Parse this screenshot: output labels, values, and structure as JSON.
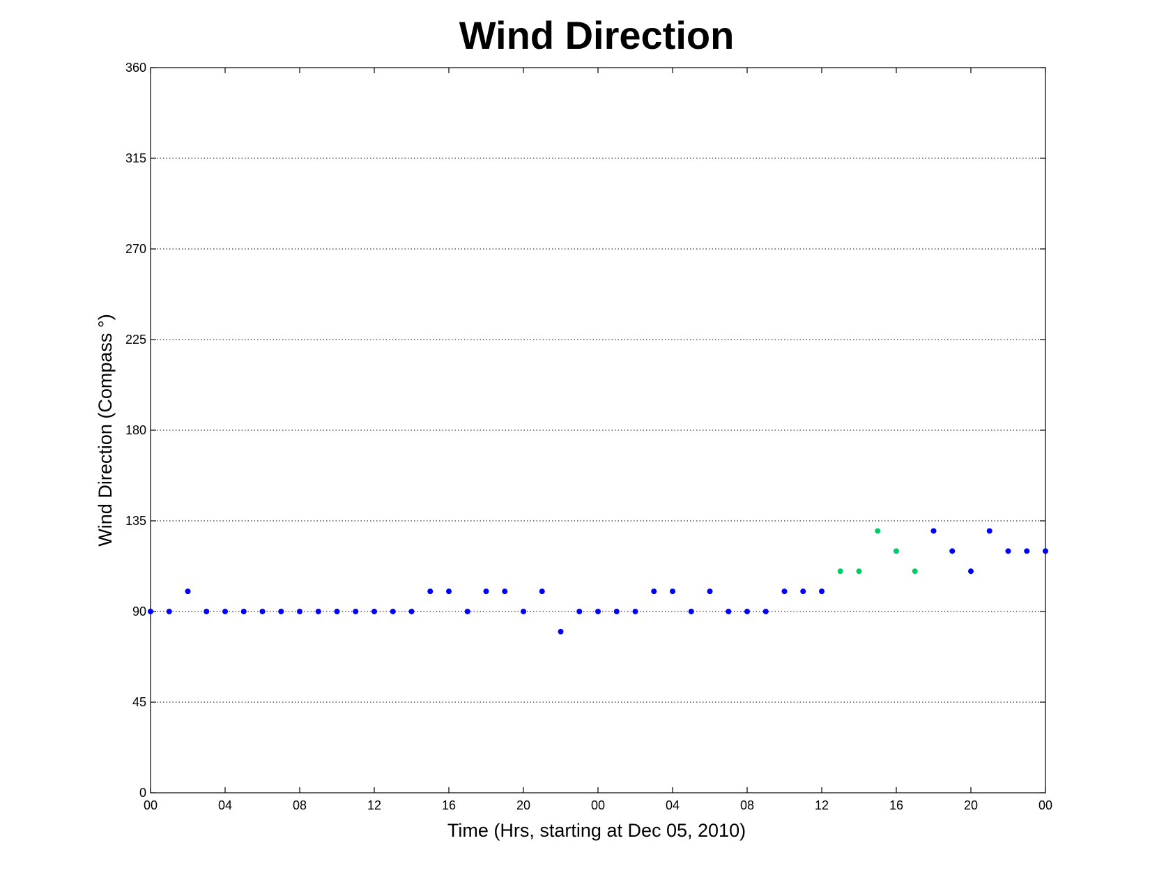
{
  "chart_data": {
    "type": "scatter",
    "title": "Wind Direction",
    "xlabel": "Time (Hrs, starting at Dec 05, 2010)",
    "ylabel": "Wind Direction (Compass  °)",
    "x_unit": "hours",
    "xlim": [
      0,
      48
    ],
    "ylim": [
      0,
      360
    ],
    "x_ticks": [
      0,
      4,
      8,
      12,
      16,
      20,
      24,
      28,
      32,
      36,
      40,
      44,
      48
    ],
    "x_tick_labels": [
      "00",
      "04",
      "08",
      "12",
      "16",
      "20",
      "00",
      "04",
      "08",
      "12",
      "16",
      "20",
      "00"
    ],
    "y_ticks": [
      0,
      45,
      90,
      135,
      180,
      225,
      270,
      315,
      360
    ],
    "y_tick_labels": [
      "0",
      "45",
      "90",
      "135",
      "180",
      "225",
      "270",
      "315",
      "360"
    ],
    "grid": "horizontal",
    "series": [
      {
        "color": "#0000ff",
        "points": [
          [
            0,
            90
          ],
          [
            1,
            90
          ],
          [
            2,
            100
          ],
          [
            3,
            90
          ],
          [
            4,
            90
          ],
          [
            5,
            90
          ],
          [
            6,
            90
          ],
          [
            7,
            90
          ],
          [
            8,
            90
          ],
          [
            9,
            90
          ],
          [
            10,
            90
          ],
          [
            11,
            90
          ],
          [
            12,
            90
          ],
          [
            13,
            90
          ],
          [
            14,
            90
          ],
          [
            15,
            100
          ],
          [
            16,
            100
          ],
          [
            17,
            90
          ],
          [
            18,
            100
          ],
          [
            19,
            100
          ],
          [
            20,
            90
          ],
          [
            21,
            100
          ],
          [
            22,
            80
          ],
          [
            23,
            90
          ],
          [
            24,
            90
          ],
          [
            25,
            90
          ],
          [
            26,
            90
          ],
          [
            27,
            100
          ],
          [
            28,
            100
          ],
          [
            29,
            90
          ],
          [
            30,
            100
          ],
          [
            31,
            90
          ],
          [
            32,
            90
          ],
          [
            33,
            90
          ],
          [
            34,
            100
          ],
          [
            35,
            100
          ],
          [
            36,
            100
          ],
          [
            42,
            130
          ],
          [
            43,
            120
          ],
          [
            44,
            110
          ],
          [
            45,
            130
          ],
          [
            46,
            120
          ],
          [
            47,
            120
          ],
          [
            48,
            120
          ]
        ]
      },
      {
        "color": "#00cc66",
        "points": [
          [
            37,
            110
          ],
          [
            38,
            110
          ],
          [
            39,
            130
          ],
          [
            40,
            120
          ],
          [
            41,
            110
          ]
        ]
      }
    ]
  }
}
